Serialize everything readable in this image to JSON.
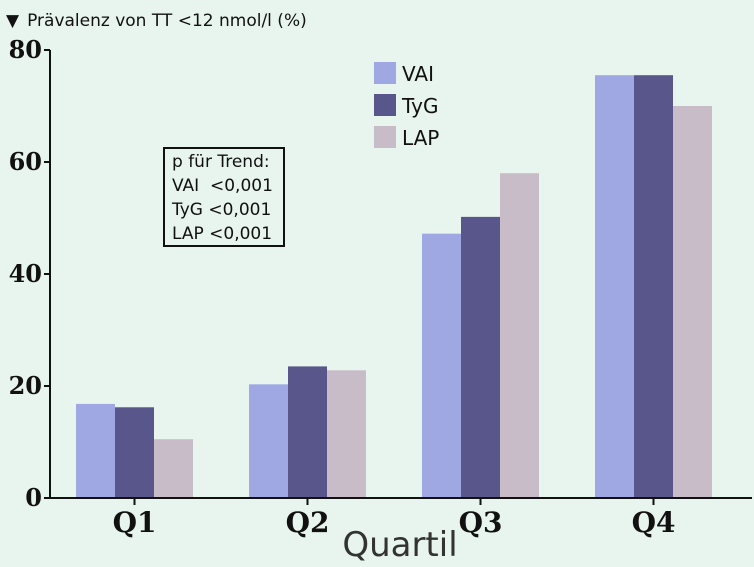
{
  "chart_data": {
    "type": "bar",
    "ylabel": "Prävalenz von TT <12 nmol/l (%)",
    "ylabel_marker": "▼",
    "xlabel": "Quartil",
    "categories": [
      "Q1",
      "Q2",
      "Q3",
      "Q4"
    ],
    "series": [
      {
        "name": "VAI",
        "color": "#a0a8e4",
        "values": [
          16.8,
          20.3,
          47.2,
          75.5
        ]
      },
      {
        "name": "TyG",
        "color": "#58568a",
        "values": [
          16.2,
          23.5,
          50.2,
          75.5
        ]
      },
      {
        "name": "LAP",
        "color": "#c8bcc8",
        "values": [
          10.5,
          22.8,
          58.0,
          70.0
        ]
      }
    ],
    "ylim": [
      0,
      80
    ],
    "yticks": [
      0,
      20,
      40,
      60,
      80
    ],
    "grid": false,
    "legend_position": "top-center",
    "annotation": {
      "title": "p für Trend:",
      "lines": [
        "VAI  <0,001",
        "TyG <0,001",
        "LAP <0,001"
      ]
    }
  }
}
